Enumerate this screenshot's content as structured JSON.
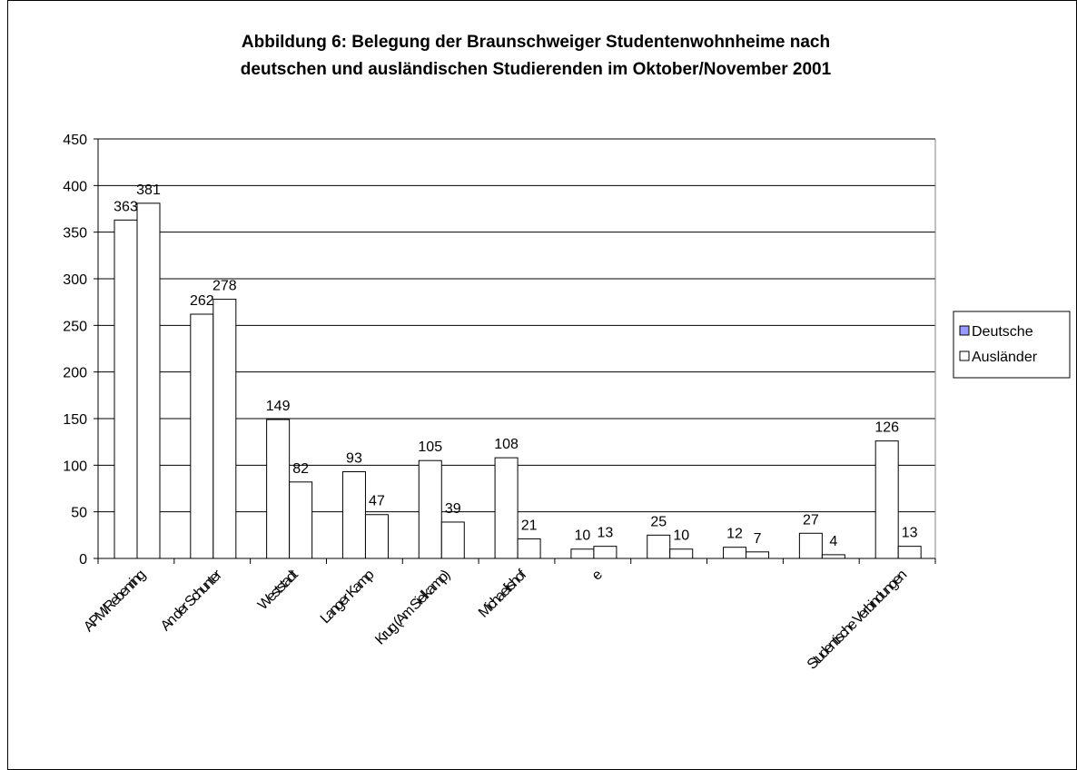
{
  "chart_data": {
    "type": "bar",
    "title": [
      "Abbildung  6: Belegung der Braunschweiger Studentenwohnheime nach",
      "deutschen  und ausländischen Studierenden im Oktober/November 2001"
    ],
    "categories": [
      "APM/Rebenring",
      "An der Schunter",
      "Weststadt",
      "Langer Kamp",
      "Krug (Am Sielkamp)",
      "Michaelishof",
      "e",
      null,
      null,
      null,
      "Studentische Verbindungen"
    ],
    "series": [
      {
        "name": "Deutsche",
        "color": "#9999ff",
        "values": [
          363,
          262,
          149,
          93,
          105,
          108,
          10,
          25,
          12,
          27,
          126
        ]
      },
      {
        "name": "Ausländer",
        "color": "#ffffff",
        "values": [
          381,
          278,
          82,
          47,
          39,
          21,
          13,
          10,
          7,
          4,
          13
        ]
      }
    ],
    "bar_fill": "#ffffff",
    "ylim": [
      0,
      450
    ],
    "yticks": [
      0,
      50,
      100,
      150,
      200,
      250,
      300,
      350,
      400,
      450
    ],
    "grid": true,
    "legend": "right"
  }
}
